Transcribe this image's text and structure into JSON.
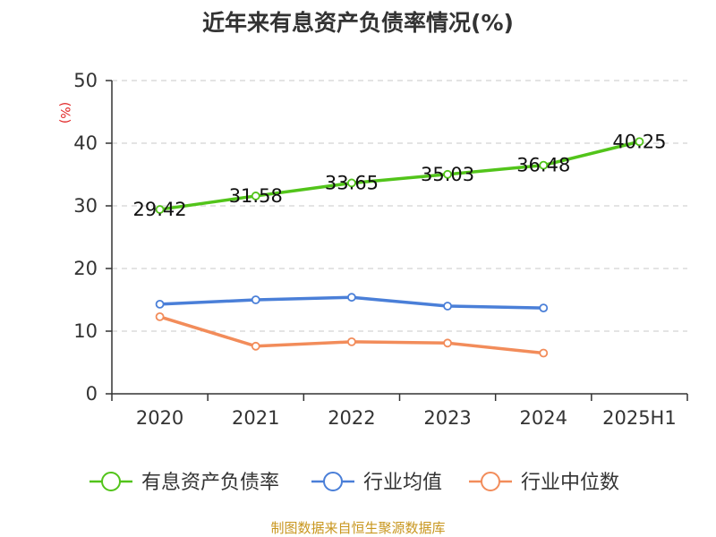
{
  "chart_data": {
    "type": "line",
    "title": "近年来有息资产负债率情况(%)",
    "ylabel": "(%)",
    "categories": [
      "2020",
      "2021",
      "2022",
      "2023",
      "2024",
      "2025H1"
    ],
    "ylim": [
      0,
      50
    ],
    "yticks": [
      0,
      10,
      20,
      30,
      40,
      50
    ],
    "grid": true,
    "legend_position": "bottom",
    "series": [
      {
        "name": "有息资产负债率",
        "color": "#52c41a",
        "values": [
          29.42,
          31.58,
          33.65,
          35.03,
          36.48,
          40.25
        ],
        "labels": [
          "29.42",
          "31.58",
          "33.65",
          "35.03",
          "36.48",
          "40.25"
        ]
      },
      {
        "name": "行业均值",
        "color": "#4a7fd8",
        "values": [
          14.3,
          15.0,
          15.4,
          14.0,
          13.7,
          null
        ]
      },
      {
        "name": "行业中位数",
        "color": "#f28c5a",
        "values": [
          12.3,
          7.6,
          8.3,
          8.1,
          6.5,
          null
        ]
      }
    ]
  },
  "source": "制图数据来自恒生聚源数据库"
}
